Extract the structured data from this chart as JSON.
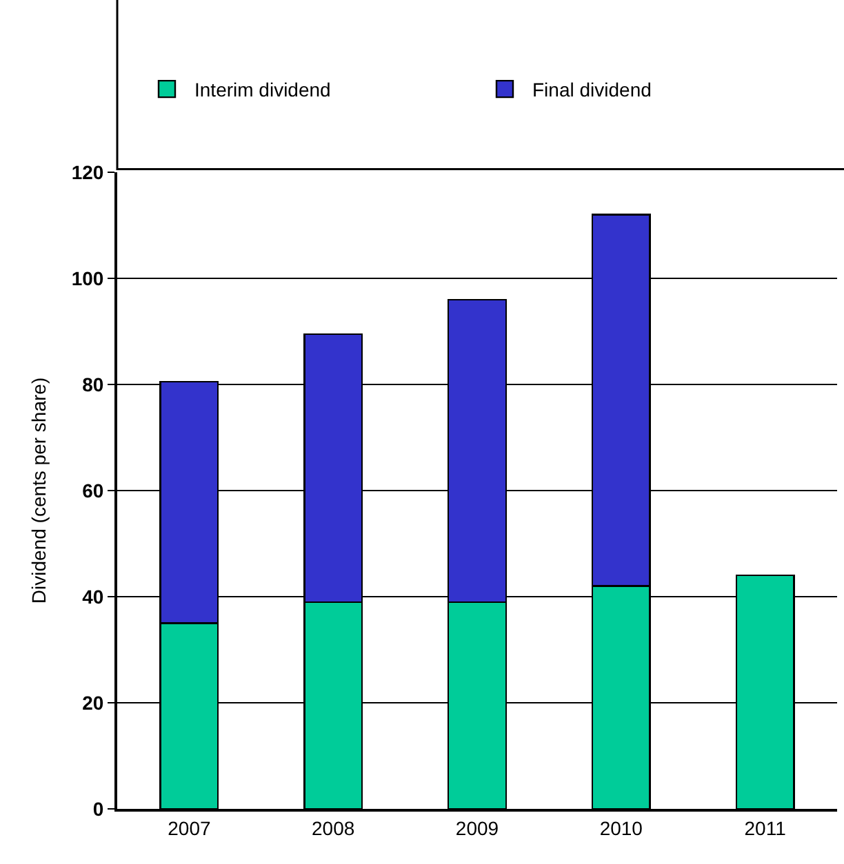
{
  "chart_data": {
    "type": "bar",
    "stacked": true,
    "ylabel": "Dividend (cents per share)",
    "categories": [
      "2007",
      "2008",
      "2009",
      "2010",
      "2011"
    ],
    "series": [
      {
        "name": "Interim dividend",
        "color": "#00cc99",
        "values": [
          35,
          39,
          39,
          42,
          44
        ]
      },
      {
        "name": "Final dividend",
        "color": "#3333cc",
        "values": [
          45.5,
          50.5,
          57,
          70,
          null
        ]
      }
    ],
    "ylim": [
      0,
      120
    ],
    "yticks": [
      0,
      20,
      40,
      60,
      80,
      100,
      120
    ],
    "grid": "y",
    "legend": "top"
  }
}
